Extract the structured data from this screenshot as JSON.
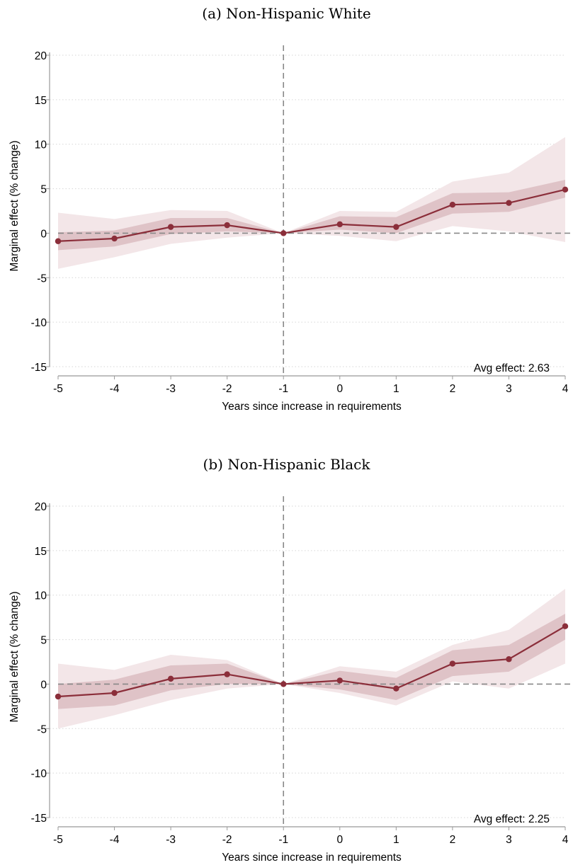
{
  "figure": {
    "panels": [
      {
        "title": "(a) Non-Hispanic White",
        "avg_label": "Avg effect: 2.63"
      },
      {
        "title": "(b) Non-Hispanic Black",
        "avg_label": "Avg effect: 2.25"
      }
    ]
  },
  "colors": {
    "line": "#8b2e3a",
    "ci90": "#dfc3c7",
    "ci95": "#f3e6e8",
    "refline": "#888888",
    "axis": "#999999",
    "grid": "#d6d6d6"
  },
  "chart_data": [
    {
      "type": "line",
      "title": "(a) Non-Hispanic White",
      "xlabel": "Years since increase in requirements",
      "ylabel": "Marginal effect (% change)",
      "x": [
        -5,
        -4,
        -3,
        -2,
        -1,
        0,
        1,
        2,
        3,
        4
      ],
      "x_tick_labels": [
        "-5",
        "-4",
        "-3",
        "-2",
        "-1",
        "0",
        "1",
        "2",
        "3",
        "4"
      ],
      "y_ticks": [
        -15,
        -10,
        -5,
        0,
        5,
        10,
        15,
        20
      ],
      "y_tick_labels": [
        "-15",
        "-10",
        "-5",
        "0",
        "5",
        "10",
        "15",
        "20"
      ],
      "ylim": [
        -15,
        20
      ],
      "xlim": [
        -5,
        4
      ],
      "grid": "horizontal dotted",
      "reference_lines": {
        "x": -1,
        "y": 0
      },
      "annotation": "Avg effect: 2.63",
      "series": [
        {
          "estimate": [
            -0.9,
            -0.6,
            0.7,
            0.9,
            0.0,
            1.0,
            0.7,
            3.2,
            3.4,
            4.9
          ],
          "ci90_low": [
            -1.9,
            -1.5,
            -0.1,
            0.2,
            0.0,
            0.4,
            0.0,
            2.2,
            2.4,
            4.0
          ],
          "ci90_high": [
            0.1,
            0.3,
            1.7,
            1.7,
            0.0,
            1.9,
            1.8,
            4.5,
            4.6,
            6.0
          ],
          "ci95_low": [
            -4.0,
            -2.7,
            -1.2,
            -0.5,
            0.0,
            -0.3,
            -0.9,
            0.8,
            0.2,
            -1.0
          ],
          "ci95_high": [
            2.3,
            1.6,
            2.6,
            2.5,
            0.0,
            2.5,
            2.4,
            5.8,
            6.8,
            10.8
          ]
        }
      ]
    },
    {
      "type": "line",
      "title": "(b) Non-Hispanic Black",
      "xlabel": "Years since increase in requirements",
      "ylabel": "Marginal effect (% change)",
      "x": [
        -5,
        -4,
        -3,
        -2,
        -1,
        0,
        1,
        2,
        3,
        4
      ],
      "x_tick_labels": [
        "-5",
        "-4",
        "-3",
        "-2",
        "-1",
        "0",
        "1",
        "2",
        "3",
        "4"
      ],
      "y_ticks": [
        -15,
        -10,
        -5,
        0,
        5,
        10,
        15,
        20
      ],
      "y_tick_labels": [
        "-15",
        "-10",
        "-5",
        "0",
        "5",
        "10",
        "15",
        "20"
      ],
      "ylim": [
        -15,
        20
      ],
      "xlim": [
        -5,
        4
      ],
      "grid": "horizontal dotted",
      "reference_lines": {
        "x": -1,
        "y": 0
      },
      "annotation": "Avg effect: 2.25",
      "series": [
        {
          "estimate": [
            -1.4,
            -1.0,
            0.6,
            1.1,
            0.0,
            0.4,
            -0.5,
            2.3,
            2.8,
            6.5
          ],
          "ci90_low": [
            -2.8,
            -2.4,
            -0.7,
            0.0,
            0.0,
            -0.6,
            -1.8,
            0.9,
            1.4,
            5.0
          ],
          "ci90_high": [
            0.0,
            0.5,
            2.1,
            2.3,
            0.0,
            1.5,
            0.7,
            3.8,
            4.4,
            7.9
          ],
          "ci95_low": [
            -5.0,
            -3.5,
            -1.8,
            -0.5,
            0.0,
            -1.0,
            -2.4,
            0.3,
            -0.5,
            2.3
          ],
          "ci95_high": [
            2.3,
            1.6,
            3.3,
            2.7,
            0.0,
            2.0,
            1.4,
            4.4,
            6.1,
            10.7
          ]
        }
      ]
    }
  ]
}
